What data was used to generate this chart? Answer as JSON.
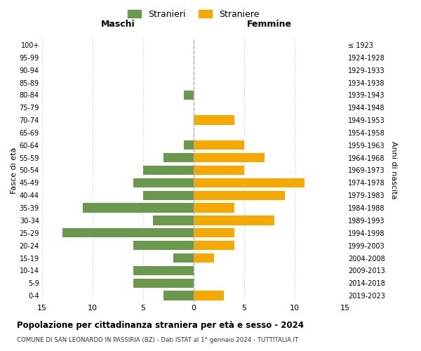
{
  "age_groups": [
    "0-4",
    "5-9",
    "10-14",
    "15-19",
    "20-24",
    "25-29",
    "30-34",
    "35-39",
    "40-44",
    "45-49",
    "50-54",
    "55-59",
    "60-64",
    "65-69",
    "70-74",
    "75-79",
    "80-84",
    "85-89",
    "90-94",
    "95-99",
    "100+"
  ],
  "birth_years": [
    "2019-2023",
    "2014-2018",
    "2009-2013",
    "2004-2008",
    "1999-2003",
    "1994-1998",
    "1989-1993",
    "1984-1988",
    "1979-1983",
    "1974-1978",
    "1969-1973",
    "1964-1968",
    "1959-1963",
    "1954-1958",
    "1949-1953",
    "1944-1948",
    "1939-1943",
    "1934-1938",
    "1929-1933",
    "1924-1928",
    "≤ 1923"
  ],
  "males": [
    3,
    6,
    6,
    2,
    6,
    13,
    4,
    11,
    5,
    6,
    5,
    3,
    1,
    0,
    0,
    0,
    1,
    0,
    0,
    0,
    0
  ],
  "females": [
    3,
    0,
    0,
    2,
    4,
    4,
    8,
    4,
    9,
    11,
    5,
    7,
    5,
    0,
    4,
    0,
    0,
    0,
    0,
    0,
    0
  ],
  "male_color": "#6a994e",
  "female_color": "#f4a800",
  "male_label": "Stranieri",
  "female_label": "Straniere",
  "title": "Popolazione per cittadinanza straniera per età e sesso - 2024",
  "subtitle": "COMUNE DI SAN LEONARDO IN PASSIRIA (BZ) - Dati ISTAT al 1° gennaio 2024 - TUTTITALIA.IT",
  "xlabel_left": "Maschi",
  "xlabel_right": "Femmine",
  "ylabel_left": "Fasce di età",
  "ylabel_right": "Anni di nascita",
  "xlim": 15,
  "background_color": "#ffffff",
  "grid_color": "#cccccc"
}
